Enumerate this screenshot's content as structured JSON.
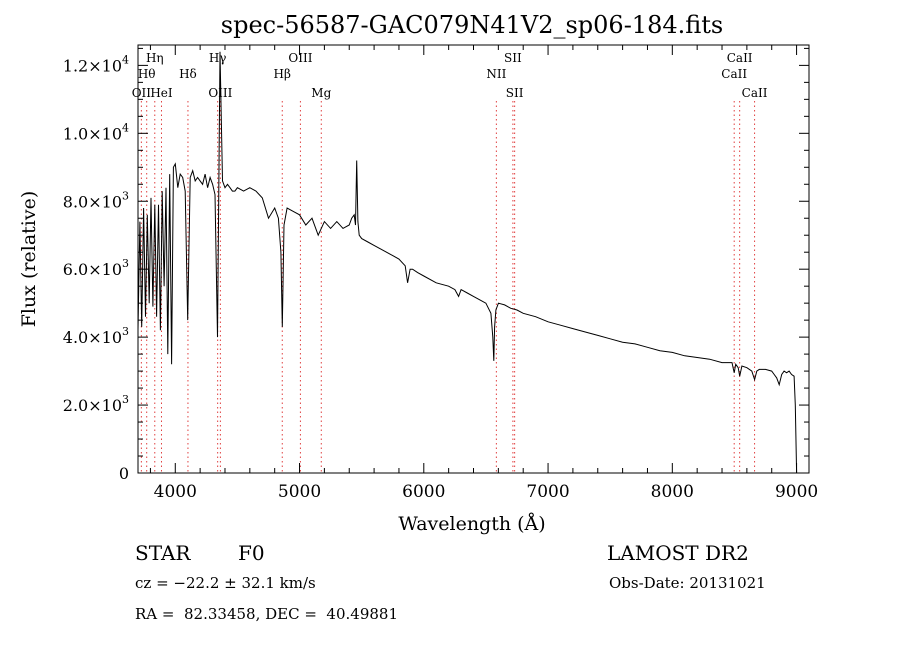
{
  "chart_data": {
    "type": "line",
    "title": "spec-56587-GAC079N41V2_sp06-184.fits",
    "xlabel": "Wavelength (Å)",
    "ylabel": "Flux (relative)",
    "xlim": [
      3700,
      9100
    ],
    "ylim": [
      0,
      12600
    ],
    "grid": false,
    "x_ticks": [
      {
        "value": 4000,
        "label": "4000"
      },
      {
        "value": 5000,
        "label": "5000"
      },
      {
        "value": 6000,
        "label": "6000"
      },
      {
        "value": 7000,
        "label": "7000"
      },
      {
        "value": 8000,
        "label": "8000"
      },
      {
        "value": 9000,
        "label": "9000"
      }
    ],
    "y_ticks": [
      {
        "value": 0,
        "mant": "0",
        "exp": ""
      },
      {
        "value": 2000,
        "mant": "2.0×10",
        "exp": "3"
      },
      {
        "value": 4000,
        "mant": "4.0×10",
        "exp": "3"
      },
      {
        "value": 6000,
        "mant": "6.0×10",
        "exp": "3"
      },
      {
        "value": 8000,
        "mant": "8.0×10",
        "exp": "3"
      },
      {
        "value": 10000,
        "mant": "1.0×10",
        "exp": "4"
      },
      {
        "value": 12000,
        "mant": "1.2×10",
        "exp": "4"
      }
    ],
    "line_markers": [
      {
        "wavelength": 3727,
        "label": "OII",
        "row": 3
      },
      {
        "wavelength": 3770,
        "label": "Hθ",
        "row": 1
      },
      {
        "wavelength": 3835,
        "label": "Hη",
        "row": 0
      },
      {
        "wavelength": 3889,
        "label": "HeI",
        "row": 3
      },
      {
        "wavelength": 4102,
        "label": "Hδ",
        "row": 1
      },
      {
        "wavelength": 4341,
        "label": "Hγ",
        "row": 0
      },
      {
        "wavelength": 4363,
        "label": "OIII",
        "row": 3
      },
      {
        "wavelength": 4861,
        "label": "Hβ",
        "row": 1
      },
      {
        "wavelength": 5007,
        "label": "OIII",
        "row": 0
      },
      {
        "wavelength": 5175,
        "label": "Mg",
        "row": 3
      },
      {
        "wavelength": 6584,
        "label": "NII",
        "row": 2
      },
      {
        "wavelength": 6717,
        "label": "SII",
        "row": 0
      },
      {
        "wavelength": 6731,
        "label": "SII",
        "row": 3
      },
      {
        "wavelength": 8498,
        "label": "CaII",
        "row": 2
      },
      {
        "wavelength": 8542,
        "label": "CaII",
        "row": 0
      },
      {
        "wavelength": 8662,
        "label": "CaII",
        "row": 3
      }
    ],
    "series": [
      {
        "x": [
          3700,
          3715,
          3730,
          3745,
          3760,
          3775,
          3790,
          3805,
          3820,
          3835,
          3850,
          3865,
          3880,
          3895,
          3910,
          3925,
          3940,
          3955,
          3970,
          3985,
          4000,
          4020,
          4040,
          4060,
          4080,
          4100,
          4120,
          4140,
          4160,
          4180,
          4200,
          4220,
          4240,
          4260,
          4280,
          4300,
          4320,
          4340,
          4360,
          4380,
          4400,
          4420,
          4440,
          4460,
          4480,
          4500,
          4550,
          4600,
          4650,
          4700,
          4750,
          4800,
          4830,
          4850,
          4861,
          4875,
          4900,
          4950,
          5000,
          5050,
          5100,
          5150,
          5200,
          5250,
          5300,
          5350,
          5400,
          5420,
          5440,
          5450,
          5460,
          5470,
          5480,
          5500,
          5550,
          5600,
          5650,
          5700,
          5750,
          5800,
          5850,
          5870,
          5890,
          5910,
          5950,
          6000,
          6100,
          6200,
          6250,
          6280,
          6300,
          6350,
          6400,
          6450,
          6500,
          6540,
          6555,
          6563,
          6570,
          6580,
          6600,
          6650,
          6700,
          6750,
          6800,
          6900,
          7000,
          7100,
          7200,
          7300,
          7400,
          7500,
          7600,
          7700,
          7800,
          7900,
          8000,
          8100,
          8200,
          8300,
          8400,
          8450,
          8480,
          8498,
          8510,
          8530,
          8542,
          8560,
          8600,
          8640,
          8662,
          8680,
          8700,
          8750,
          8800,
          8820,
          8840,
          8860,
          8880,
          8900,
          8920,
          8940,
          8960,
          8980,
          8990,
          9000
        ],
        "y": [
          4200,
          7400,
          4300,
          7800,
          4600,
          7600,
          5000,
          8100,
          4900,
          7900,
          4600,
          7900,
          4200,
          8300,
          5500,
          8400,
          3500,
          8800,
          3200,
          9000,
          9100,
          8400,
          8800,
          8700,
          8300,
          4500,
          8700,
          8900,
          8600,
          8700,
          8600,
          8500,
          8800,
          8400,
          8700,
          8500,
          8200,
          4000,
          12400,
          8600,
          8400,
          8500,
          8400,
          8300,
          8300,
          8400,
          8300,
          8400,
          8300,
          8100,
          7500,
          7800,
          7500,
          6500,
          4300,
          7300,
          7800,
          7700,
          7600,
          7300,
          7500,
          7000,
          7400,
          7200,
          7400,
          7200,
          7300,
          7500,
          7600,
          7300,
          9200,
          7400,
          7000,
          6900,
          6800,
          6700,
          6600,
          6500,
          6400,
          6300,
          6100,
          5600,
          6000,
          6000,
          5900,
          5800,
          5600,
          5500,
          5400,
          5200,
          5400,
          5300,
          5200,
          5100,
          5000,
          4700,
          4000,
          3300,
          4300,
          4800,
          5000,
          4950,
          4850,
          4800,
          4700,
          4600,
          4450,
          4350,
          4250,
          4150,
          4050,
          3950,
          3850,
          3800,
          3700,
          3600,
          3550,
          3450,
          3400,
          3350,
          3250,
          3250,
          3250,
          2950,
          3200,
          3100,
          2850,
          3150,
          3100,
          3000,
          2750,
          3000,
          3050,
          3050,
          3000,
          2900,
          2800,
          2600,
          2900,
          3000,
          2950,
          3000,
          2900,
          2850,
          2000,
          0
        ]
      }
    ]
  },
  "footer": {
    "object_type": "STAR",
    "subclass": "F0",
    "survey": "LAMOST DR2",
    "cz": "cz = −22.2 ± 32.1 km/s",
    "obs_date": "Obs-Date: 20131021",
    "coords": "RA =  82.33458, DEC =  40.49881"
  }
}
